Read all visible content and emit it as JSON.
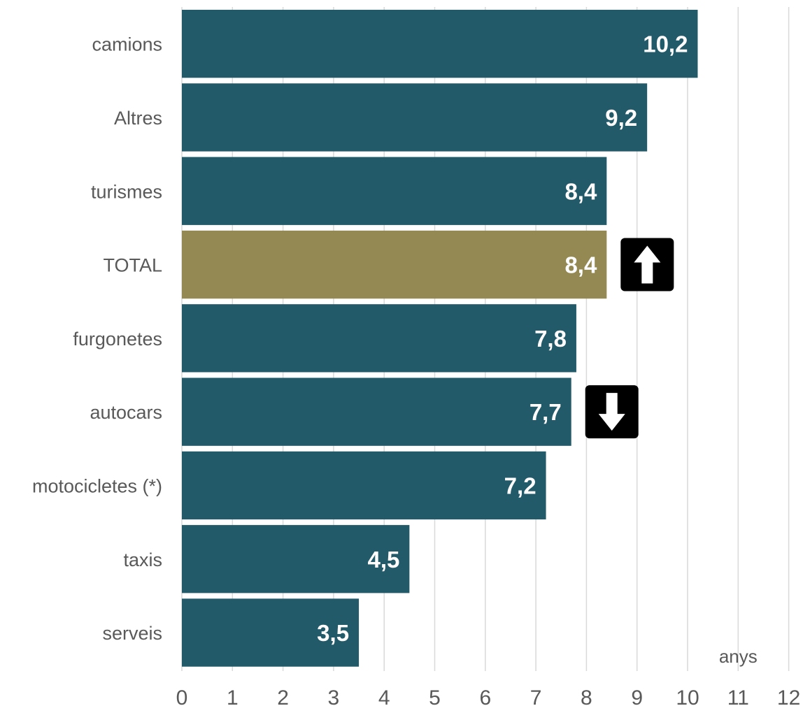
{
  "chart_data": {
    "type": "bar",
    "orientation": "horizontal",
    "categories": [
      "camions",
      "Altres",
      "turismes",
      "TOTAL",
      "furgonetes",
      "autocars",
      "motocicletes (*)",
      "taxis",
      "serveis"
    ],
    "values": [
      10.2,
      9.2,
      8.4,
      8.4,
      7.8,
      7.7,
      7.2,
      4.5,
      3.5
    ],
    "value_labels": [
      "10,2",
      "9,2",
      "8,4",
      "8,4",
      "7,8",
      "7,7",
      "7,2",
      "4,5",
      "3,5"
    ],
    "highlight_category": "TOTAL",
    "bar_color": "#235a6a",
    "highlight_color": "#948953",
    "title": "",
    "xlabel": "anys",
    "ylabel": "",
    "xlim": [
      0,
      12
    ],
    "x_ticks": [
      "0",
      "1",
      "2",
      "3",
      "4",
      "5",
      "6",
      "7",
      "8",
      "9",
      "10",
      "11",
      "12"
    ],
    "grid": "vertical",
    "annotations": [
      {
        "category": "TOTAL",
        "icon": "arrow-up-icon",
        "direction": "up"
      },
      {
        "category": "autocars",
        "icon": "arrow-down-icon",
        "direction": "down"
      }
    ]
  }
}
